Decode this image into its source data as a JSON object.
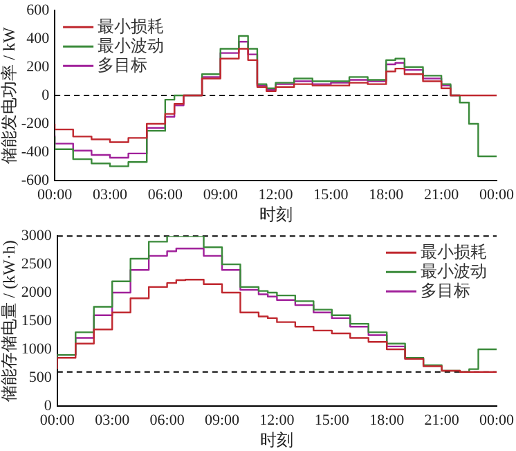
{
  "chart_data": [
    {
      "type": "step",
      "xlabel": "时刻",
      "ylabel": "储能发电功率 / kW",
      "x": [
        0,
        1,
        2,
        3,
        4,
        5,
        6,
        6.5,
        7,
        8,
        9,
        10,
        10.5,
        11,
        11.5,
        12,
        13,
        14,
        15,
        16,
        17,
        18,
        18.5,
        19,
        20,
        21,
        21.5,
        22,
        22.5,
        23,
        24
      ],
      "series": [
        {
          "name": "最小损耗",
          "color": "#c0282f",
          "values": [
            -200,
            -240,
            -290,
            -310,
            -330,
            -300,
            -200,
            -130,
            -60,
            0,
            120,
            260,
            330,
            250,
            60,
            30,
            60,
            80,
            70,
            70,
            90,
            80,
            170,
            190,
            150,
            100,
            50,
            0,
            0,
            0,
            0
          ]
        },
        {
          "name": "最小波动",
          "color": "#3a8a3a",
          "values": [
            -290,
            -380,
            -450,
            -480,
            -500,
            -470,
            -250,
            -30,
            0,
            0,
            150,
            330,
            420,
            330,
            80,
            50,
            90,
            120,
            100,
            100,
            130,
            110,
            250,
            260,
            200,
            140,
            80,
            0,
            -50,
            -200,
            -430
          ]
        },
        {
          "name": "多目标",
          "color": "#a0209a",
          "values": [
            -280,
            -340,
            -390,
            -420,
            -440,
            -410,
            -230,
            -150,
            -70,
            0,
            130,
            300,
            380,
            290,
            70,
            40,
            80,
            100,
            80,
            90,
            110,
            100,
            220,
            230,
            180,
            120,
            70,
            0,
            null,
            null,
            null
          ]
        }
      ],
      "xlim": [
        0,
        24
      ],
      "xticks": [
        {
          "value": 0,
          "label": "00:00"
        },
        {
          "value": 3,
          "label": "03:00"
        },
        {
          "value": 6,
          "label": "06:00"
        },
        {
          "value": 9,
          "label": "09:00"
        },
        {
          "value": 12,
          "label": "12:00"
        },
        {
          "value": 15,
          "label": "15:00"
        },
        {
          "value": 18,
          "label": "18:00"
        },
        {
          "value": 21,
          "label": "21:00"
        },
        {
          "value": 24,
          "label": "00:00"
        }
      ],
      "ylim": [
        -600,
        600
      ],
      "yticks": [
        -600,
        -400,
        -200,
        0,
        200,
        400,
        600
      ],
      "ref_lines": [
        {
          "axis": "y",
          "value": 0,
          "color": "#000000",
          "line_style": "dashed"
        }
      ],
      "grid": false,
      "legend": "top left",
      "marker": "none",
      "line_style": "solid"
    },
    {
      "type": "step",
      "xlabel": "时刻",
      "ylabel": "储能存储电量 / (kW·h)",
      "x": [
        0,
        1,
        2,
        3,
        4,
        5,
        6,
        6.5,
        7,
        8,
        9,
        10,
        11,
        11.5,
        12,
        13,
        14,
        15,
        16,
        17,
        18,
        19,
        20,
        21,
        22,
        22.5,
        23,
        24
      ],
      "series": [
        {
          "name": "最小损耗",
          "color": "#c0282f",
          "values": [
            650,
            850,
            1100,
            1350,
            1650,
            1900,
            2100,
            2170,
            2220,
            2230,
            2150,
            2000,
            1650,
            1580,
            1550,
            1480,
            1400,
            1330,
            1280,
            1200,
            1130,
            1000,
            830,
            700,
            620,
            600,
            600,
            600
          ]
        },
        {
          "name": "最小波动",
          "color": "#3a8a3a",
          "values": [
            650,
            900,
            1300,
            1750,
            2200,
            2600,
            2900,
            3000,
            3000,
            3000,
            2800,
            2500,
            2100,
            2030,
            2000,
            1950,
            1850,
            1700,
            1600,
            1450,
            1300,
            1100,
            850,
            720,
            620,
            600,
            650,
            1000
          ]
        },
        {
          "name": "多目标",
          "color": "#a0209a",
          "values": [
            650,
            900,
            1200,
            1600,
            2000,
            2400,
            2650,
            2730,
            2780,
            2780,
            2650,
            2400,
            2050,
            1970,
            1930,
            1870,
            1780,
            1650,
            1550,
            1400,
            1250,
            1050,
            830,
            null,
            null,
            null,
            null,
            null
          ]
        }
      ],
      "xlim": [
        0,
        24
      ],
      "xticks": [
        {
          "value": 0,
          "label": "00:00"
        },
        {
          "value": 3,
          "label": "03:00"
        },
        {
          "value": 6,
          "label": "06:00"
        },
        {
          "value": 9,
          "label": "09:00"
        },
        {
          "value": 12,
          "label": "12:00"
        },
        {
          "value": 15,
          "label": "15:00"
        },
        {
          "value": 18,
          "label": "18:00"
        },
        {
          "value": 21,
          "label": "21:00"
        },
        {
          "value": 24,
          "label": "00:00"
        }
      ],
      "ylim": [
        0,
        3000
      ],
      "yticks": [
        0,
        500,
        1000,
        1500,
        2000,
        2500,
        3000
      ],
      "ref_lines": [
        {
          "axis": "y",
          "value": 3000,
          "color": "#000000",
          "line_style": "dashed"
        },
        {
          "axis": "y",
          "value": 600,
          "color": "#000000",
          "line_style": "dashed"
        }
      ],
      "grid": false,
      "legend": "top right",
      "marker": "none",
      "line_style": "solid"
    }
  ]
}
